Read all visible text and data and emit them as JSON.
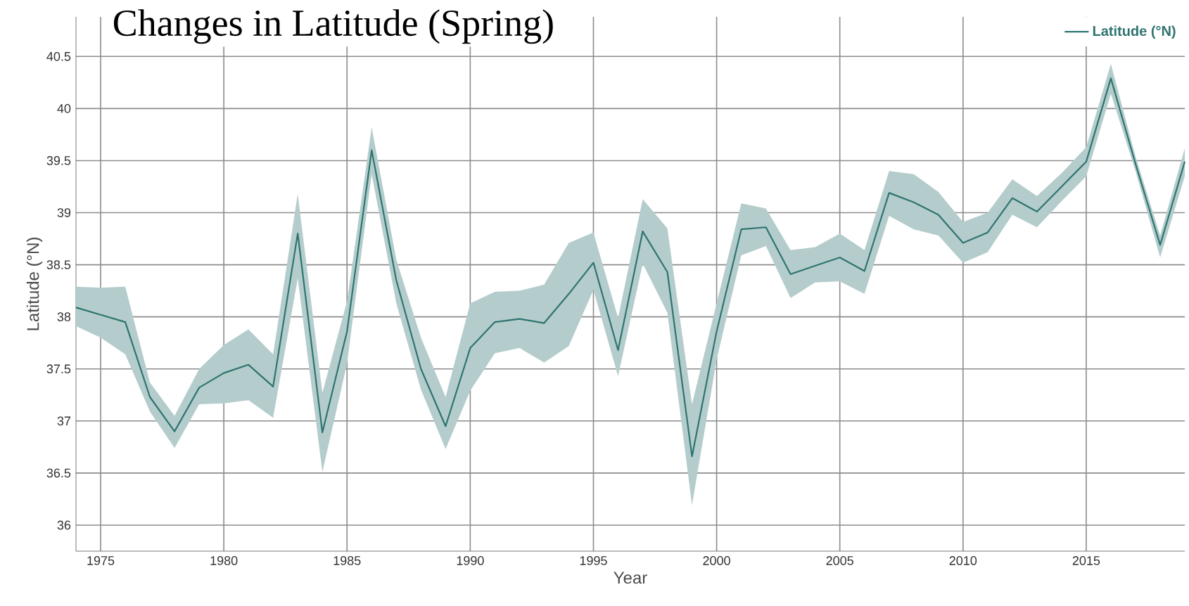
{
  "chart_data": {
    "type": "line",
    "title": "Changes in Latitude (Spring)",
    "xlabel": "Year",
    "ylabel": "Latitude (°N)",
    "x": [
      1974,
      1975,
      1976,
      1977,
      1978,
      1979,
      1980,
      1981,
      1982,
      1983,
      1984,
      1985,
      1986,
      1987,
      1988,
      1989,
      1990,
      1991,
      1992,
      1993,
      1994,
      1995,
      1996,
      1997,
      1998,
      1999,
      2000,
      2001,
      2002,
      2003,
      2004,
      2005,
      2006,
      2007,
      2008,
      2009,
      2010,
      2011,
      2012,
      2013,
      2014,
      2015,
      2016,
      2017,
      2018,
      2019
    ],
    "series": [
      {
        "name": "Latitude (°N)",
        "color": "#2f7470",
        "values": [
          38.09,
          38.02,
          37.95,
          37.23,
          36.9,
          37.32,
          37.46,
          37.54,
          37.33,
          38.8,
          36.89,
          37.86,
          39.6,
          38.35,
          37.5,
          36.95,
          37.7,
          37.95,
          37.98,
          37.94,
          38.22,
          38.52,
          37.68,
          38.82,
          38.43,
          36.66,
          37.86,
          38.84,
          38.86,
          38.41,
          38.49,
          38.57,
          38.44,
          39.19,
          39.1,
          38.98,
          38.71,
          38.81,
          39.14,
          39.01,
          39.25,
          39.49,
          40.29,
          39.47,
          38.69,
          39.49
        ],
        "upper": [
          38.29,
          38.28,
          38.29,
          37.37,
          37.05,
          37.5,
          37.73,
          37.88,
          37.64,
          39.18,
          37.27,
          38.15,
          39.82,
          38.55,
          37.8,
          37.23,
          38.13,
          38.24,
          38.25,
          38.31,
          38.71,
          38.81,
          37.99,
          39.13,
          38.85,
          37.16,
          38.13,
          39.09,
          39.04,
          38.64,
          38.67,
          38.8,
          38.64,
          39.4,
          39.37,
          39.2,
          38.91,
          39.0,
          39.32,
          39.16,
          39.38,
          39.63,
          40.43,
          39.54,
          38.78,
          39.62
        ],
        "lower": [
          37.91,
          37.8,
          37.64,
          37.09,
          36.74,
          37.16,
          37.17,
          37.2,
          37.03,
          38.37,
          36.51,
          37.55,
          39.37,
          38.13,
          37.3,
          36.73,
          37.29,
          37.65,
          37.7,
          37.56,
          37.72,
          38.26,
          37.43,
          38.51,
          38.04,
          36.19,
          37.59,
          38.59,
          38.68,
          38.18,
          38.33,
          38.34,
          38.22,
          38.97,
          38.84,
          38.78,
          38.52,
          38.62,
          38.98,
          38.86,
          39.11,
          39.35,
          40.14,
          39.4,
          38.57,
          39.35
        ]
      }
    ],
    "xlim": [
      1974,
      2019
    ],
    "ylim": [
      35.75,
      40.88
    ],
    "xticks": [
      1975,
      1980,
      1985,
      1990,
      1995,
      2000,
      2005,
      2010,
      2015
    ],
    "yticks": [
      36,
      36.5,
      37,
      37.5,
      38,
      38.5,
      39,
      39.5,
      40,
      40.5
    ],
    "grid": true,
    "legend": "top right",
    "marker": "none",
    "line_style": "solid"
  }
}
